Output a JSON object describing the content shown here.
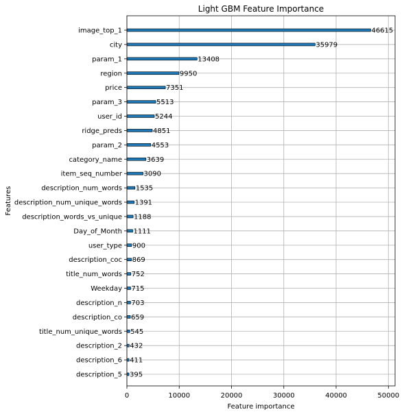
{
  "chart_data": {
    "type": "bar",
    "orientation": "horizontal",
    "title": "Light GBM Feature Importance",
    "xlabel": "Feature importance",
    "ylabel": "Features",
    "xlim": [
      0,
      51276
    ],
    "xticks": [
      0,
      10000,
      20000,
      30000,
      40000,
      50000
    ],
    "grid": true,
    "bar_color": "#1f77b4",
    "categories": [
      "image_top_1",
      "city",
      "param_1",
      "region",
      "price",
      "param_3",
      "user_id",
      "ridge_preds",
      "param_2",
      "category_name",
      "item_seq_number",
      "description_num_words",
      "description_num_unique_words",
      "description_words_vs_unique",
      "Day_of_Month",
      "user_type",
      "description_coc",
      "title_num_words",
      "Weekday",
      "description_n",
      "description_co",
      "title_num_unique_words",
      "description_2",
      "description_6",
      "description_5"
    ],
    "values": [
      46615,
      35979,
      13408,
      9950,
      7351,
      5513,
      5244,
      4851,
      4553,
      3639,
      3090,
      1535,
      1391,
      1188,
      1111,
      900,
      869,
      752,
      715,
      703,
      659,
      545,
      432,
      411,
      395
    ]
  }
}
